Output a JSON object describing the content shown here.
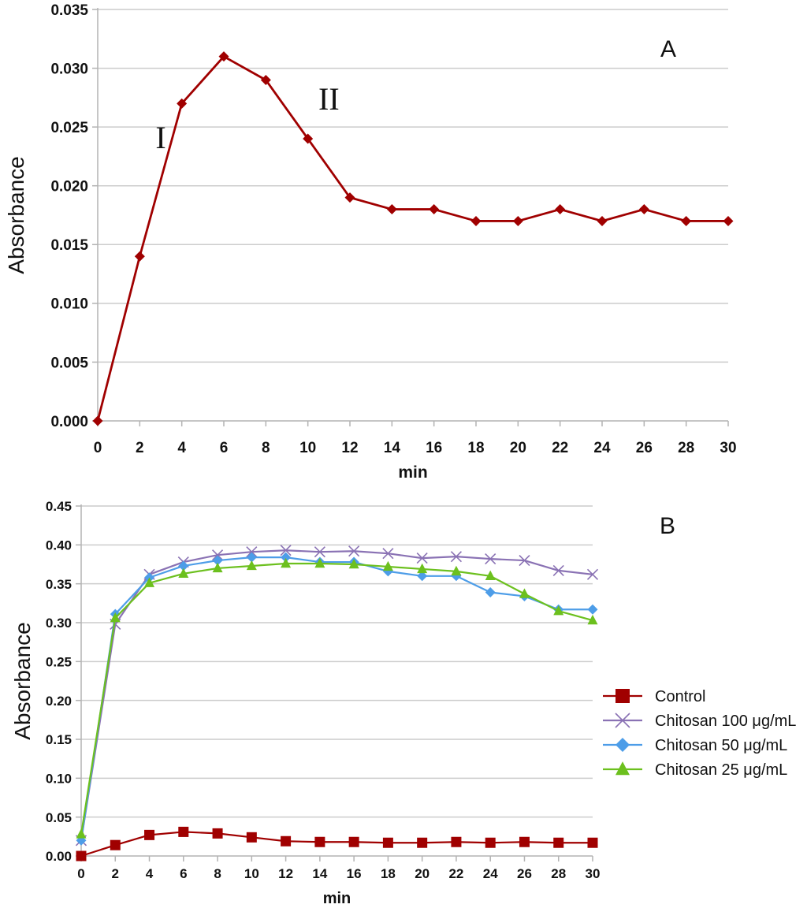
{
  "chart_data": [
    {
      "type": "line",
      "panel_label": "A",
      "xlabel": "min",
      "ylabel": "Absorbance",
      "xlim": [
        0,
        30
      ],
      "ylim": [
        0,
        0.035
      ],
      "x_ticks": [
        "0",
        "2",
        "4",
        "6",
        "8",
        "10",
        "12",
        "14",
        "16",
        "18",
        "20",
        "22",
        "24",
        "26",
        "28",
        "30"
      ],
      "y_ticks": [
        "0.000",
        "0.005",
        "0.010",
        "0.015",
        "0.020",
        "0.025",
        "0.030",
        "0.035"
      ],
      "grid": true,
      "annotations": [
        {
          "text": "I",
          "x": 3,
          "y": 0.0232
        },
        {
          "text": "II",
          "x": 11,
          "y": 0.0265
        }
      ],
      "series": [
        {
          "name": "Control",
          "color": "#a00000",
          "marker": "diamond",
          "x": [
            0,
            2,
            4,
            6,
            8,
            10,
            12,
            14,
            16,
            18,
            20,
            22,
            24,
            26,
            28,
            30
          ],
          "values": [
            0.0,
            0.014,
            0.027,
            0.031,
            0.029,
            0.024,
            0.019,
            0.018,
            0.018,
            0.017,
            0.017,
            0.018,
            0.017,
            0.018,
            0.017,
            0.017
          ]
        }
      ]
    },
    {
      "type": "line",
      "panel_label": "B",
      "xlabel": "min",
      "ylabel": "Absorbance",
      "xlim": [
        0,
        30
      ],
      "ylim": [
        0,
        0.45
      ],
      "x_ticks": [
        "0",
        "2",
        "4",
        "6",
        "8",
        "10",
        "12",
        "14",
        "16",
        "18",
        "20",
        "22",
        "24",
        "26",
        "28",
        "30"
      ],
      "y_ticks": [
        "0.00",
        "0.05",
        "0.10",
        "0.15",
        "0.20",
        "0.25",
        "0.30",
        "0.35",
        "0.40",
        "0.45"
      ],
      "grid": true,
      "legend_position": "right",
      "series": [
        {
          "name": "Control",
          "color": "#a00000",
          "marker": "square",
          "x": [
            0,
            2,
            4,
            6,
            8,
            10,
            12,
            14,
            16,
            18,
            20,
            22,
            24,
            26,
            28,
            30
          ],
          "values": [
            0.0,
            0.014,
            0.027,
            0.031,
            0.029,
            0.024,
            0.019,
            0.018,
            0.018,
            0.017,
            0.017,
            0.018,
            0.017,
            0.018,
            0.017,
            0.017
          ]
        },
        {
          "name": "Chitosan 100 μg/mL",
          "color": "#8a72b4",
          "marker": "x",
          "x": [
            0,
            2,
            4,
            6,
            8,
            10,
            12,
            14,
            16,
            18,
            20,
            22,
            24,
            26,
            28,
            30
          ],
          "values": [
            0.02,
            0.298,
            0.362,
            0.378,
            0.387,
            0.391,
            0.393,
            0.391,
            0.392,
            0.389,
            0.383,
            0.385,
            0.382,
            0.38,
            0.367,
            0.362
          ]
        },
        {
          "name": "Chitosan 50  μg/mL",
          "color": "#4d9de8",
          "marker": "diamond",
          "x": [
            0,
            2,
            4,
            6,
            8,
            10,
            12,
            14,
            16,
            18,
            20,
            22,
            24,
            26,
            28,
            30
          ],
          "values": [
            0.02,
            0.311,
            0.358,
            0.373,
            0.38,
            0.384,
            0.384,
            0.378,
            0.378,
            0.366,
            0.36,
            0.36,
            0.339,
            0.334,
            0.317,
            0.317
          ]
        },
        {
          "name": "Chitosan 25 μg/mL",
          "color": "#6cc01e",
          "marker": "triangle",
          "x": [
            0,
            2,
            4,
            6,
            8,
            10,
            12,
            14,
            16,
            18,
            20,
            22,
            24,
            26,
            28,
            30
          ],
          "values": [
            0.028,
            0.306,
            0.351,
            0.363,
            0.37,
            0.373,
            0.376,
            0.376,
            0.375,
            0.372,
            0.369,
            0.366,
            0.36,
            0.337,
            0.315,
            0.303
          ]
        }
      ]
    }
  ]
}
